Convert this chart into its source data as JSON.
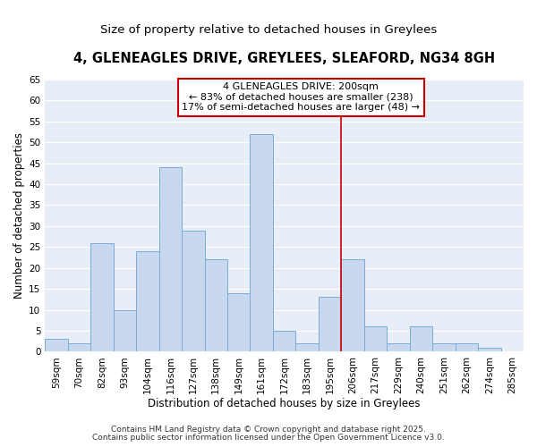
{
  "title": "4, GLENEAGLES DRIVE, GREYLEES, SLEAFORD, NG34 8GH",
  "subtitle": "Size of property relative to detached houses in Greylees",
  "xlabel": "Distribution of detached houses by size in Greylees",
  "ylabel": "Number of detached properties",
  "bar_labels": [
    "59sqm",
    "70sqm",
    "82sqm",
    "93sqm",
    "104sqm",
    "116sqm",
    "127sqm",
    "138sqm",
    "149sqm",
    "161sqm",
    "172sqm",
    "183sqm",
    "195sqm",
    "206sqm",
    "217sqm",
    "229sqm",
    "240sqm",
    "251sqm",
    "262sqm",
    "274sqm",
    "285sqm"
  ],
  "bar_values": [
    3,
    2,
    26,
    10,
    24,
    44,
    29,
    22,
    14,
    52,
    5,
    2,
    13,
    22,
    6,
    2,
    6,
    2,
    2,
    1,
    0
  ],
  "bar_color": "#c8d9ef",
  "bar_edge_color": "#7aadd4",
  "vline_x_index": 12.5,
  "vline_color": "#cc0000",
  "annotation_title": "4 GLENEAGLES DRIVE: 200sqm",
  "annotation_line1": "← 83% of detached houses are smaller (238)",
  "annotation_line2": "17% of semi-detached houses are larger (48) →",
  "annotation_box_edge": "#cc0000",
  "annotation_box_face": "white",
  "ylim": [
    0,
    65
  ],
  "yticks": [
    0,
    5,
    10,
    15,
    20,
    25,
    30,
    35,
    40,
    45,
    50,
    55,
    60,
    65
  ],
  "footnote1": "Contains HM Land Registry data © Crown copyright and database right 2025.",
  "footnote2": "Contains public sector information licensed under the Open Government Licence v3.0.",
  "bg_color": "#ffffff",
  "plot_bg_color": "#e8eef7",
  "grid_color": "#ffffff",
  "title_fontsize": 10.5,
  "subtitle_fontsize": 9.5,
  "axis_label_fontsize": 8.5,
  "tick_fontsize": 7.5,
  "annotation_fontsize": 8,
  "footnote_fontsize": 6.5
}
